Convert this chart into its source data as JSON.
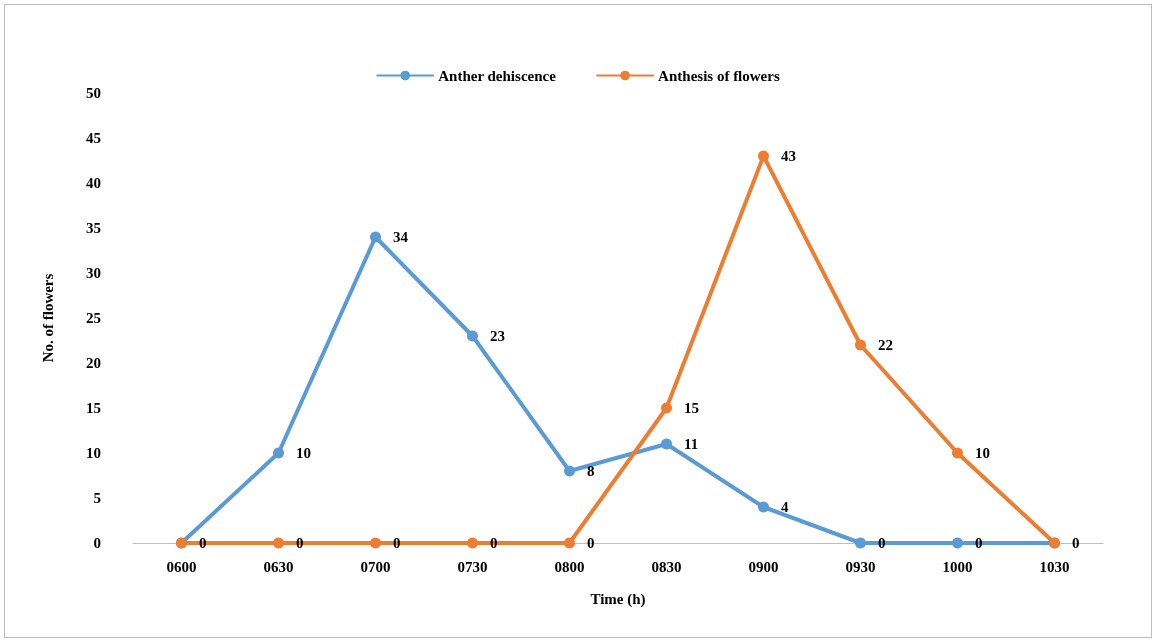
{
  "chart_data": {
    "type": "line",
    "xlabel": "Time (h)",
    "ylabel": "No. of flowers",
    "categories": [
      "0600",
      "0630",
      "0700",
      "0730",
      "0800",
      "0830",
      "0900",
      "0930",
      "1000",
      "1030"
    ],
    "series": [
      {
        "name": "Anther dehiscence",
        "color": "#5b9bd5",
        "values": [
          0,
          10,
          34,
          23,
          8,
          11,
          4,
          0,
          0,
          0
        ],
        "value_labels": [
          "0",
          "10",
          "34",
          "23",
          "8",
          "11",
          "4",
          "0",
          "0",
          "0"
        ]
      },
      {
        "name": "Anthesis of flowers",
        "color": "#ed7d31",
        "values": [
          0,
          0,
          0,
          0,
          0,
          15,
          43,
          22,
          10,
          0
        ],
        "value_labels": [
          null,
          "0",
          "0",
          "0",
          "0",
          "15",
          "43",
          "22",
          "10",
          null
        ]
      }
    ],
    "ylim": [
      0,
      50
    ],
    "yticks": [
      0,
      5,
      10,
      15,
      20,
      25,
      30,
      35,
      40,
      45,
      50
    ],
    "grid": false,
    "legend": "top",
    "marker": "circle",
    "line_style": "solid"
  }
}
